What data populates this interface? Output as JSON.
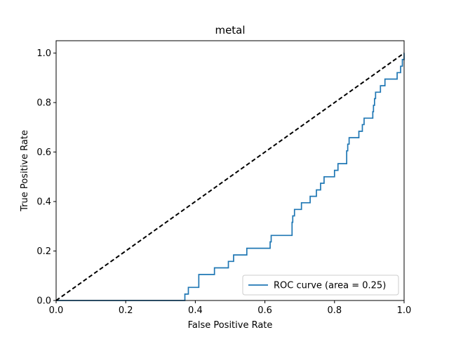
{
  "chart_data": {
    "type": "line",
    "title": "metal",
    "xlabel": "False Positive Rate",
    "ylabel": "True Positive Rate",
    "xlim": [
      0.0,
      1.0
    ],
    "ylim": [
      0.0,
      1.05
    ],
    "xticks": [
      "0.0",
      "0.2",
      "0.4",
      "0.6",
      "0.8",
      "1.0"
    ],
    "yticks": [
      "0.0",
      "0.2",
      "0.4",
      "0.6",
      "0.8",
      "1.0"
    ],
    "grid": false,
    "legend": {
      "position": "lower-right",
      "entries": [
        "ROC curve (area = 0.25)"
      ]
    },
    "series": [
      {
        "name": "ROC curve (area = 0.25)",
        "color": "#1f77b4",
        "style": "solid",
        "points": [
          [
            0.0,
            0.0
          ],
          [
            0.37,
            0.0
          ],
          [
            0.37,
            0.026
          ],
          [
            0.38,
            0.026
          ],
          [
            0.38,
            0.053
          ],
          [
            0.41,
            0.053
          ],
          [
            0.41,
            0.105
          ],
          [
            0.455,
            0.105
          ],
          [
            0.455,
            0.132
          ],
          [
            0.495,
            0.132
          ],
          [
            0.495,
            0.158
          ],
          [
            0.51,
            0.158
          ],
          [
            0.51,
            0.184
          ],
          [
            0.548,
            0.184
          ],
          [
            0.548,
            0.211
          ],
          [
            0.615,
            0.211
          ],
          [
            0.615,
            0.237
          ],
          [
            0.618,
            0.237
          ],
          [
            0.618,
            0.263
          ],
          [
            0.678,
            0.263
          ],
          [
            0.678,
            0.316
          ],
          [
            0.68,
            0.316
          ],
          [
            0.68,
            0.342
          ],
          [
            0.685,
            0.342
          ],
          [
            0.685,
            0.368
          ],
          [
            0.705,
            0.368
          ],
          [
            0.705,
            0.395
          ],
          [
            0.73,
            0.395
          ],
          [
            0.73,
            0.421
          ],
          [
            0.748,
            0.421
          ],
          [
            0.748,
            0.447
          ],
          [
            0.76,
            0.447
          ],
          [
            0.76,
            0.474
          ],
          [
            0.77,
            0.474
          ],
          [
            0.77,
            0.5
          ],
          [
            0.8,
            0.5
          ],
          [
            0.8,
            0.526
          ],
          [
            0.81,
            0.526
          ],
          [
            0.81,
            0.553
          ],
          [
            0.835,
            0.553
          ],
          [
            0.835,
            0.605
          ],
          [
            0.838,
            0.605
          ],
          [
            0.838,
            0.632
          ],
          [
            0.842,
            0.632
          ],
          [
            0.842,
            0.658
          ],
          [
            0.87,
            0.658
          ],
          [
            0.87,
            0.684
          ],
          [
            0.88,
            0.684
          ],
          [
            0.88,
            0.711
          ],
          [
            0.885,
            0.711
          ],
          [
            0.885,
            0.737
          ],
          [
            0.91,
            0.737
          ],
          [
            0.91,
            0.763
          ],
          [
            0.912,
            0.763
          ],
          [
            0.912,
            0.789
          ],
          [
            0.915,
            0.789
          ],
          [
            0.915,
            0.816
          ],
          [
            0.918,
            0.816
          ],
          [
            0.918,
            0.842
          ],
          [
            0.932,
            0.842
          ],
          [
            0.932,
            0.868
          ],
          [
            0.945,
            0.868
          ],
          [
            0.945,
            0.895
          ],
          [
            0.98,
            0.895
          ],
          [
            0.98,
            0.921
          ],
          [
            0.99,
            0.921
          ],
          [
            0.99,
            0.947
          ],
          [
            0.995,
            0.947
          ],
          [
            0.995,
            0.974
          ],
          [
            1.0,
            0.974
          ],
          [
            1.0,
            1.0
          ]
        ]
      },
      {
        "name": "",
        "color": "#000000",
        "style": "dashed",
        "points": [
          [
            0.0,
            0.0
          ],
          [
            1.0,
            1.0
          ]
        ]
      }
    ]
  }
}
